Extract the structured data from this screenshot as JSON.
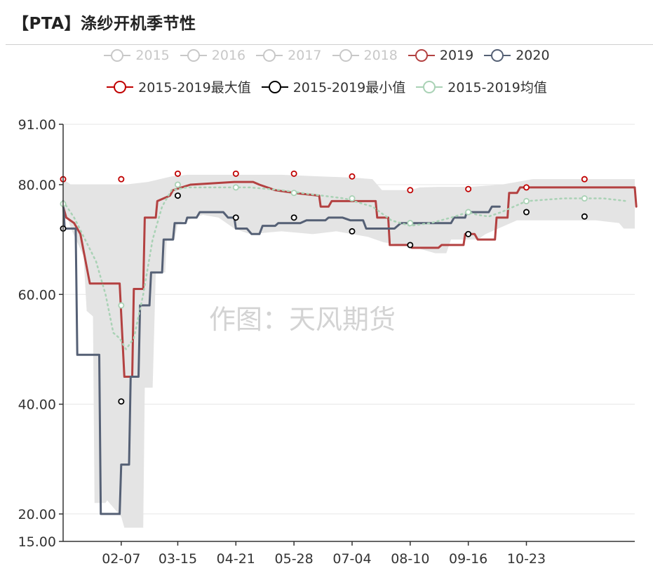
{
  "header": {
    "title": "【PTA】涤纱开机季节性"
  },
  "watermark": "作图：天风期货",
  "legend": {
    "row1": [
      {
        "label": "2015",
        "color": "#c8c8c8",
        "active": false
      },
      {
        "label": "2016",
        "color": "#c8c8c8",
        "active": false
      },
      {
        "label": "2017",
        "color": "#c8c8c8",
        "active": false
      },
      {
        "label": "2018",
        "color": "#c8c8c8",
        "active": false
      },
      {
        "label": "2019",
        "color": "#b34141",
        "active": true
      },
      {
        "label": "2020",
        "color": "#556075",
        "active": true
      }
    ],
    "row2": [
      {
        "label": "2015-2019最大值",
        "color": "#c00000",
        "active": true
      },
      {
        "label": "2015-2019最小值",
        "color": "#000000",
        "active": true
      },
      {
        "label": "2015-2019均值",
        "color": "#a9d2b5",
        "active": true
      }
    ]
  },
  "chart_data": {
    "type": "line",
    "title": "【PTA】涤纱开机季节性",
    "ylim": [
      15,
      91
    ],
    "y_ticks": [
      "91.00",
      "80.00",
      "60.00",
      "40.00",
      "20.00",
      "15.00"
    ],
    "y_tick_values": [
      91,
      80,
      60,
      40,
      20,
      15
    ],
    "x_range_days": [
      1,
      365
    ],
    "x_ticks": [
      "02-07",
      "03-15",
      "04-21",
      "05-28",
      "07-04",
      "08-10",
      "09-16",
      "10-23"
    ],
    "x_tick_days": [
      38,
      74,
      111,
      148,
      185,
      222,
      259,
      296
    ],
    "grid": true,
    "series": [
      {
        "name": "2019",
        "color": "#b34141",
        "points": [
          [
            1,
            76
          ],
          [
            3,
            74
          ],
          [
            8,
            73
          ],
          [
            12,
            71
          ],
          [
            18,
            62
          ],
          [
            37,
            62
          ],
          [
            40,
            45
          ],
          [
            45,
            45
          ],
          [
            46,
            61
          ],
          [
            52,
            61
          ],
          [
            53,
            74
          ],
          [
            60,
            74
          ],
          [
            61,
            77
          ],
          [
            69,
            78
          ],
          [
            71,
            79
          ],
          [
            82,
            80
          ],
          [
            110,
            80.5
          ],
          [
            122,
            80.5
          ],
          [
            126,
            80
          ],
          [
            136,
            79
          ],
          [
            148,
            78.5
          ],
          [
            164,
            78
          ],
          [
            165,
            76
          ],
          [
            170,
            76
          ],
          [
            172,
            77
          ],
          [
            200,
            77
          ],
          [
            201,
            74
          ],
          [
            208,
            74
          ],
          [
            209,
            69
          ],
          [
            222,
            69
          ],
          [
            223,
            68.5
          ],
          [
            240,
            68.5
          ],
          [
            242,
            69
          ],
          [
            256,
            69
          ],
          [
            257,
            71
          ],
          [
            263,
            71
          ],
          [
            265,
            70
          ],
          [
            276,
            70
          ],
          [
            277,
            74
          ],
          [
            284,
            74
          ],
          [
            285,
            78.5
          ],
          [
            290,
            78.5
          ],
          [
            292,
            79.5
          ],
          [
            365,
            79.5
          ],
          [
            366,
            76
          ]
        ]
      },
      {
        "name": "2020",
        "color": "#556075",
        "points": [
          [
            1,
            77
          ],
          [
            2,
            72
          ],
          [
            9,
            72
          ],
          [
            10,
            49
          ],
          [
            24,
            49
          ],
          [
            25,
            20
          ],
          [
            37,
            20
          ],
          [
            38,
            29
          ],
          [
            43,
            29
          ],
          [
            44,
            45
          ],
          [
            49,
            45
          ],
          [
            50,
            58
          ],
          [
            56,
            58
          ],
          [
            57,
            64
          ],
          [
            64,
            64
          ],
          [
            65,
            70
          ],
          [
            71,
            70
          ],
          [
            72,
            73
          ],
          [
            79,
            73
          ],
          [
            80,
            74
          ],
          [
            86,
            74
          ],
          [
            88,
            75
          ],
          [
            103,
            75
          ],
          [
            106,
            74
          ],
          [
            110,
            74
          ],
          [
            111,
            72
          ],
          [
            118,
            72
          ],
          [
            121,
            71
          ],
          [
            126,
            71
          ],
          [
            128,
            72.5
          ],
          [
            136,
            72.5
          ],
          [
            138,
            73
          ],
          [
            152,
            73
          ],
          [
            156,
            73.5
          ],
          [
            168,
            73.5
          ],
          [
            170,
            74
          ],
          [
            179,
            74
          ],
          [
            184,
            73.5
          ],
          [
            192,
            73.5
          ],
          [
            194,
            72
          ],
          [
            212,
            72
          ],
          [
            216,
            73
          ],
          [
            248,
            73
          ],
          [
            250,
            74
          ],
          [
            257,
            74
          ],
          [
            258,
            75
          ],
          [
            272,
            75
          ],
          [
            274,
            76
          ],
          [
            279,
            76
          ]
        ]
      },
      {
        "name": "2015-2019最大值",
        "color": "#c00000",
        "markers": [
          [
            1,
            81
          ],
          [
            38,
            81
          ],
          [
            74,
            82
          ],
          [
            111,
            82
          ],
          [
            148,
            82
          ],
          [
            185,
            81.5
          ],
          [
            222,
            79
          ],
          [
            259,
            79.2
          ],
          [
            296,
            79.5
          ],
          [
            333,
            81
          ]
        ]
      },
      {
        "name": "2015-2019最小值",
        "color": "#000000",
        "markers": [
          [
            1,
            72
          ],
          [
            38,
            40.5
          ],
          [
            74,
            78
          ],
          [
            111,
            74
          ],
          [
            148,
            74
          ],
          [
            185,
            71.5
          ],
          [
            222,
            69
          ],
          [
            259,
            71
          ],
          [
            296,
            75
          ],
          [
            333,
            74.2
          ]
        ]
      },
      {
        "name": "2015-2019均值",
        "color": "#a9d2b5",
        "markers": [
          [
            1,
            76.5
          ],
          [
            38,
            58
          ],
          [
            74,
            80
          ],
          [
            111,
            79.5
          ],
          [
            148,
            78.5
          ],
          [
            185,
            77.5
          ],
          [
            222,
            73
          ],
          [
            259,
            75
          ],
          [
            296,
            77
          ],
          [
            333,
            77.5
          ]
        ],
        "points": [
          [
            1,
            77
          ],
          [
            8,
            74
          ],
          [
            15,
            70
          ],
          [
            22,
            66
          ],
          [
            28,
            60
          ],
          [
            33,
            53
          ],
          [
            37,
            52
          ],
          [
            41,
            50
          ],
          [
            46,
            52
          ],
          [
            52,
            60
          ],
          [
            58,
            70
          ],
          [
            64,
            76
          ],
          [
            70,
            79
          ],
          [
            80,
            79.5
          ],
          [
            100,
            79.5
          ],
          [
            120,
            79.5
          ],
          [
            140,
            79
          ],
          [
            160,
            78.2
          ],
          [
            180,
            77.5
          ],
          [
            198,
            76
          ],
          [
            210,
            73.5
          ],
          [
            222,
            72.5
          ],
          [
            235,
            73
          ],
          [
            248,
            74
          ],
          [
            259,
            75
          ],
          [
            265,
            74.5
          ],
          [
            272,
            74.2
          ],
          [
            280,
            75
          ],
          [
            296,
            77
          ],
          [
            320,
            77.5
          ],
          [
            345,
            77.5
          ],
          [
            360,
            77
          ]
        ]
      }
    ],
    "band": {
      "name": "range",
      "upper": [
        [
          1,
          81
        ],
        [
          6,
          80
        ],
        [
          14,
          80
        ],
        [
          16,
          80
        ],
        [
          30,
          80
        ],
        [
          40,
          80
        ],
        [
          55,
          80.5
        ],
        [
          70,
          81.5
        ],
        [
          80,
          81.8
        ],
        [
          110,
          81.8
        ],
        [
          140,
          81.8
        ],
        [
          165,
          81.5
        ],
        [
          185,
          81.3
        ],
        [
          198,
          81
        ],
        [
          204,
          79
        ],
        [
          215,
          79
        ],
        [
          222,
          79
        ],
        [
          228,
          79.5
        ],
        [
          240,
          79.6
        ],
        [
          260,
          79.6
        ],
        [
          280,
          80
        ],
        [
          300,
          81
        ],
        [
          330,
          81
        ],
        [
          365,
          81
        ]
      ],
      "lower": [
        [
          1,
          76.5
        ],
        [
          6,
          72
        ],
        [
          14,
          67
        ],
        [
          16,
          57
        ],
        [
          20,
          56
        ],
        [
          21,
          22
        ],
        [
          28,
          22
        ],
        [
          29,
          22.5
        ],
        [
          38,
          19.5
        ],
        [
          40,
          17.5
        ],
        [
          52,
          17.5
        ],
        [
          53,
          43
        ],
        [
          58,
          43
        ],
        [
          60,
          64
        ],
        [
          66,
          64
        ],
        [
          67,
          70
        ],
        [
          72,
          70
        ],
        [
          74,
          73
        ],
        [
          90,
          74.5
        ],
        [
          100,
          74
        ],
        [
          110,
          72
        ],
        [
          120,
          71
        ],
        [
          140,
          71.5
        ],
        [
          160,
          71
        ],
        [
          175,
          71.5
        ],
        [
          185,
          71
        ],
        [
          195,
          70.5
        ],
        [
          205,
          69.5
        ],
        [
          222,
          68.8
        ],
        [
          238,
          67.5
        ],
        [
          245,
          67.5
        ],
        [
          248,
          70
        ],
        [
          265,
          70
        ],
        [
          270,
          71
        ],
        [
          290,
          73.5
        ],
        [
          310,
          73.5
        ],
        [
          340,
          73.5
        ],
        [
          355,
          73
        ],
        [
          358,
          72
        ],
        [
          365,
          72
        ]
      ]
    }
  }
}
